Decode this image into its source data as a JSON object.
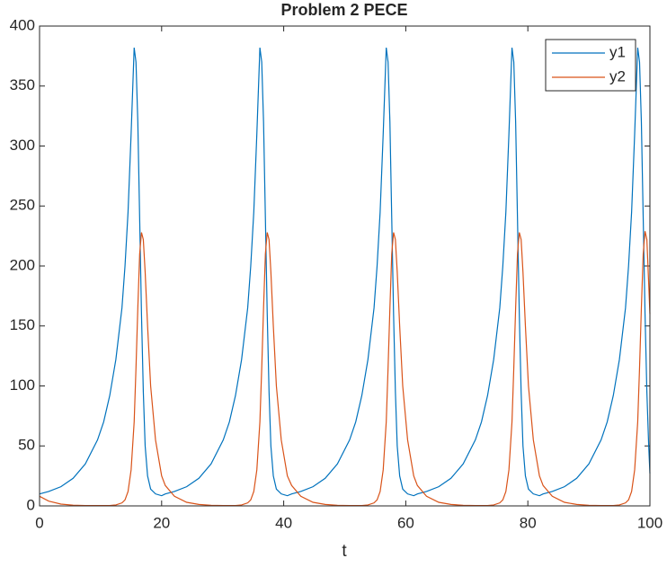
{
  "chart_data": {
    "type": "line",
    "title": "Problem 2 PECE",
    "x_label": "t",
    "x": [
      0,
      1.5,
      3.5,
      5.5,
      7.5,
      9.5,
      10.5,
      11.5,
      12.5,
      13.5,
      14,
      14.5,
      15,
      15.5,
      15.8,
      16.1,
      16.4,
      16.7,
      17,
      17.3,
      17.7,
      18.2,
      19,
      20,
      20.6,
      22.1,
      24.1,
      26.1,
      28.1,
      30.1,
      31.1,
      32.1,
      33.1,
      34.1,
      34.6,
      35.1,
      35.6,
      36.1,
      36.4,
      36.7,
      37,
      37.3,
      37.6,
      37.9,
      38.3,
      38.8,
      39.6,
      40.6,
      41.3,
      42.8,
      44.8,
      46.8,
      48.8,
      50.8,
      51.8,
      52.8,
      53.8,
      54.8,
      55.3,
      55.8,
      56.3,
      56.8,
      57.1,
      57.4,
      57.7,
      58,
      58.3,
      58.6,
      59,
      59.5,
      60.3,
      61.3,
      61.9,
      63.4,
      65.4,
      67.4,
      69.4,
      71.4,
      72.4,
      73.4,
      74.4,
      75.4,
      75.9,
      76.4,
      76.9,
      77.4,
      77.7,
      78,
      78.3,
      78.6,
      78.9,
      79.2,
      79.6,
      80.1,
      80.9,
      81.9,
      82.5,
      84,
      86,
      88,
      90,
      92,
      93,
      94,
      95,
      96,
      96.5,
      97,
      97.5,
      98,
      98.3,
      98.6,
      98.9,
      99.2,
      99.5,
      99.8,
      100
    ],
    "series": [
      {
        "name": "y1",
        "color": "#0072BD",
        "values": [
          10,
          12,
          16,
          23,
          35,
          55,
          70,
          92,
          122,
          165,
          200,
          245,
          310,
          382,
          370,
          320,
          240,
          160,
          95,
          50,
          25,
          14,
          10,
          8.5,
          10,
          12,
          16,
          23,
          35,
          55,
          70,
          92,
          122,
          165,
          200,
          245,
          310,
          382,
          370,
          320,
          240,
          160,
          95,
          50,
          25,
          14,
          10,
          8.5,
          10,
          12,
          16,
          23,
          35,
          55,
          70,
          92,
          122,
          165,
          200,
          245,
          310,
          382,
          370,
          320,
          240,
          160,
          95,
          50,
          25,
          14,
          10,
          8.5,
          10,
          12,
          16,
          23,
          35,
          55,
          70,
          92,
          122,
          165,
          200,
          245,
          310,
          382,
          370,
          320,
          240,
          160,
          95,
          50,
          25,
          14,
          10,
          8.5,
          10,
          12,
          16,
          23,
          35,
          55,
          70,
          92,
          122,
          165,
          200,
          245,
          310,
          382,
          370,
          320,
          240,
          160,
          95,
          50,
          27
        ]
      },
      {
        "name": "y2",
        "color": "#D95319",
        "values": [
          8,
          4,
          1.5,
          0.6,
          0.3,
          0.3,
          0.3,
          0.3,
          0.8,
          2.5,
          5,
          12,
          30,
          70,
          115,
          165,
          210,
          228,
          222,
          195,
          150,
          100,
          55,
          25,
          17,
          8,
          3,
          1.2,
          0.5,
          0.3,
          0.3,
          0.3,
          0.8,
          2.5,
          5,
          12,
          30,
          70,
          115,
          165,
          210,
          228,
          222,
          195,
          150,
          100,
          55,
          25,
          17,
          8,
          3,
          1.2,
          0.5,
          0.3,
          0.3,
          0.3,
          0.8,
          2.5,
          5,
          12,
          30,
          70,
          115,
          165,
          210,
          228,
          222,
          195,
          150,
          100,
          55,
          25,
          17,
          8,
          3,
          1.2,
          0.5,
          0.3,
          0.3,
          0.3,
          0.8,
          2.5,
          5,
          12,
          30,
          70,
          115,
          165,
          210,
          228,
          222,
          195,
          150,
          100,
          55,
          25,
          17,
          8,
          3,
          1.2,
          0.5,
          0.3,
          0.3,
          0.3,
          0.8,
          2.5,
          5,
          12,
          30,
          70,
          115,
          165,
          210,
          229,
          222,
          185,
          160
        ]
      }
    ],
    "xlim": [
      0,
      100
    ],
    "xticks": [
      0,
      20,
      40,
      60,
      80,
      100
    ],
    "ylim": [
      0,
      400
    ],
    "yticks": [
      0,
      50,
      100,
      150,
      200,
      250,
      300,
      350,
      400
    ],
    "legend": "upper right"
  }
}
